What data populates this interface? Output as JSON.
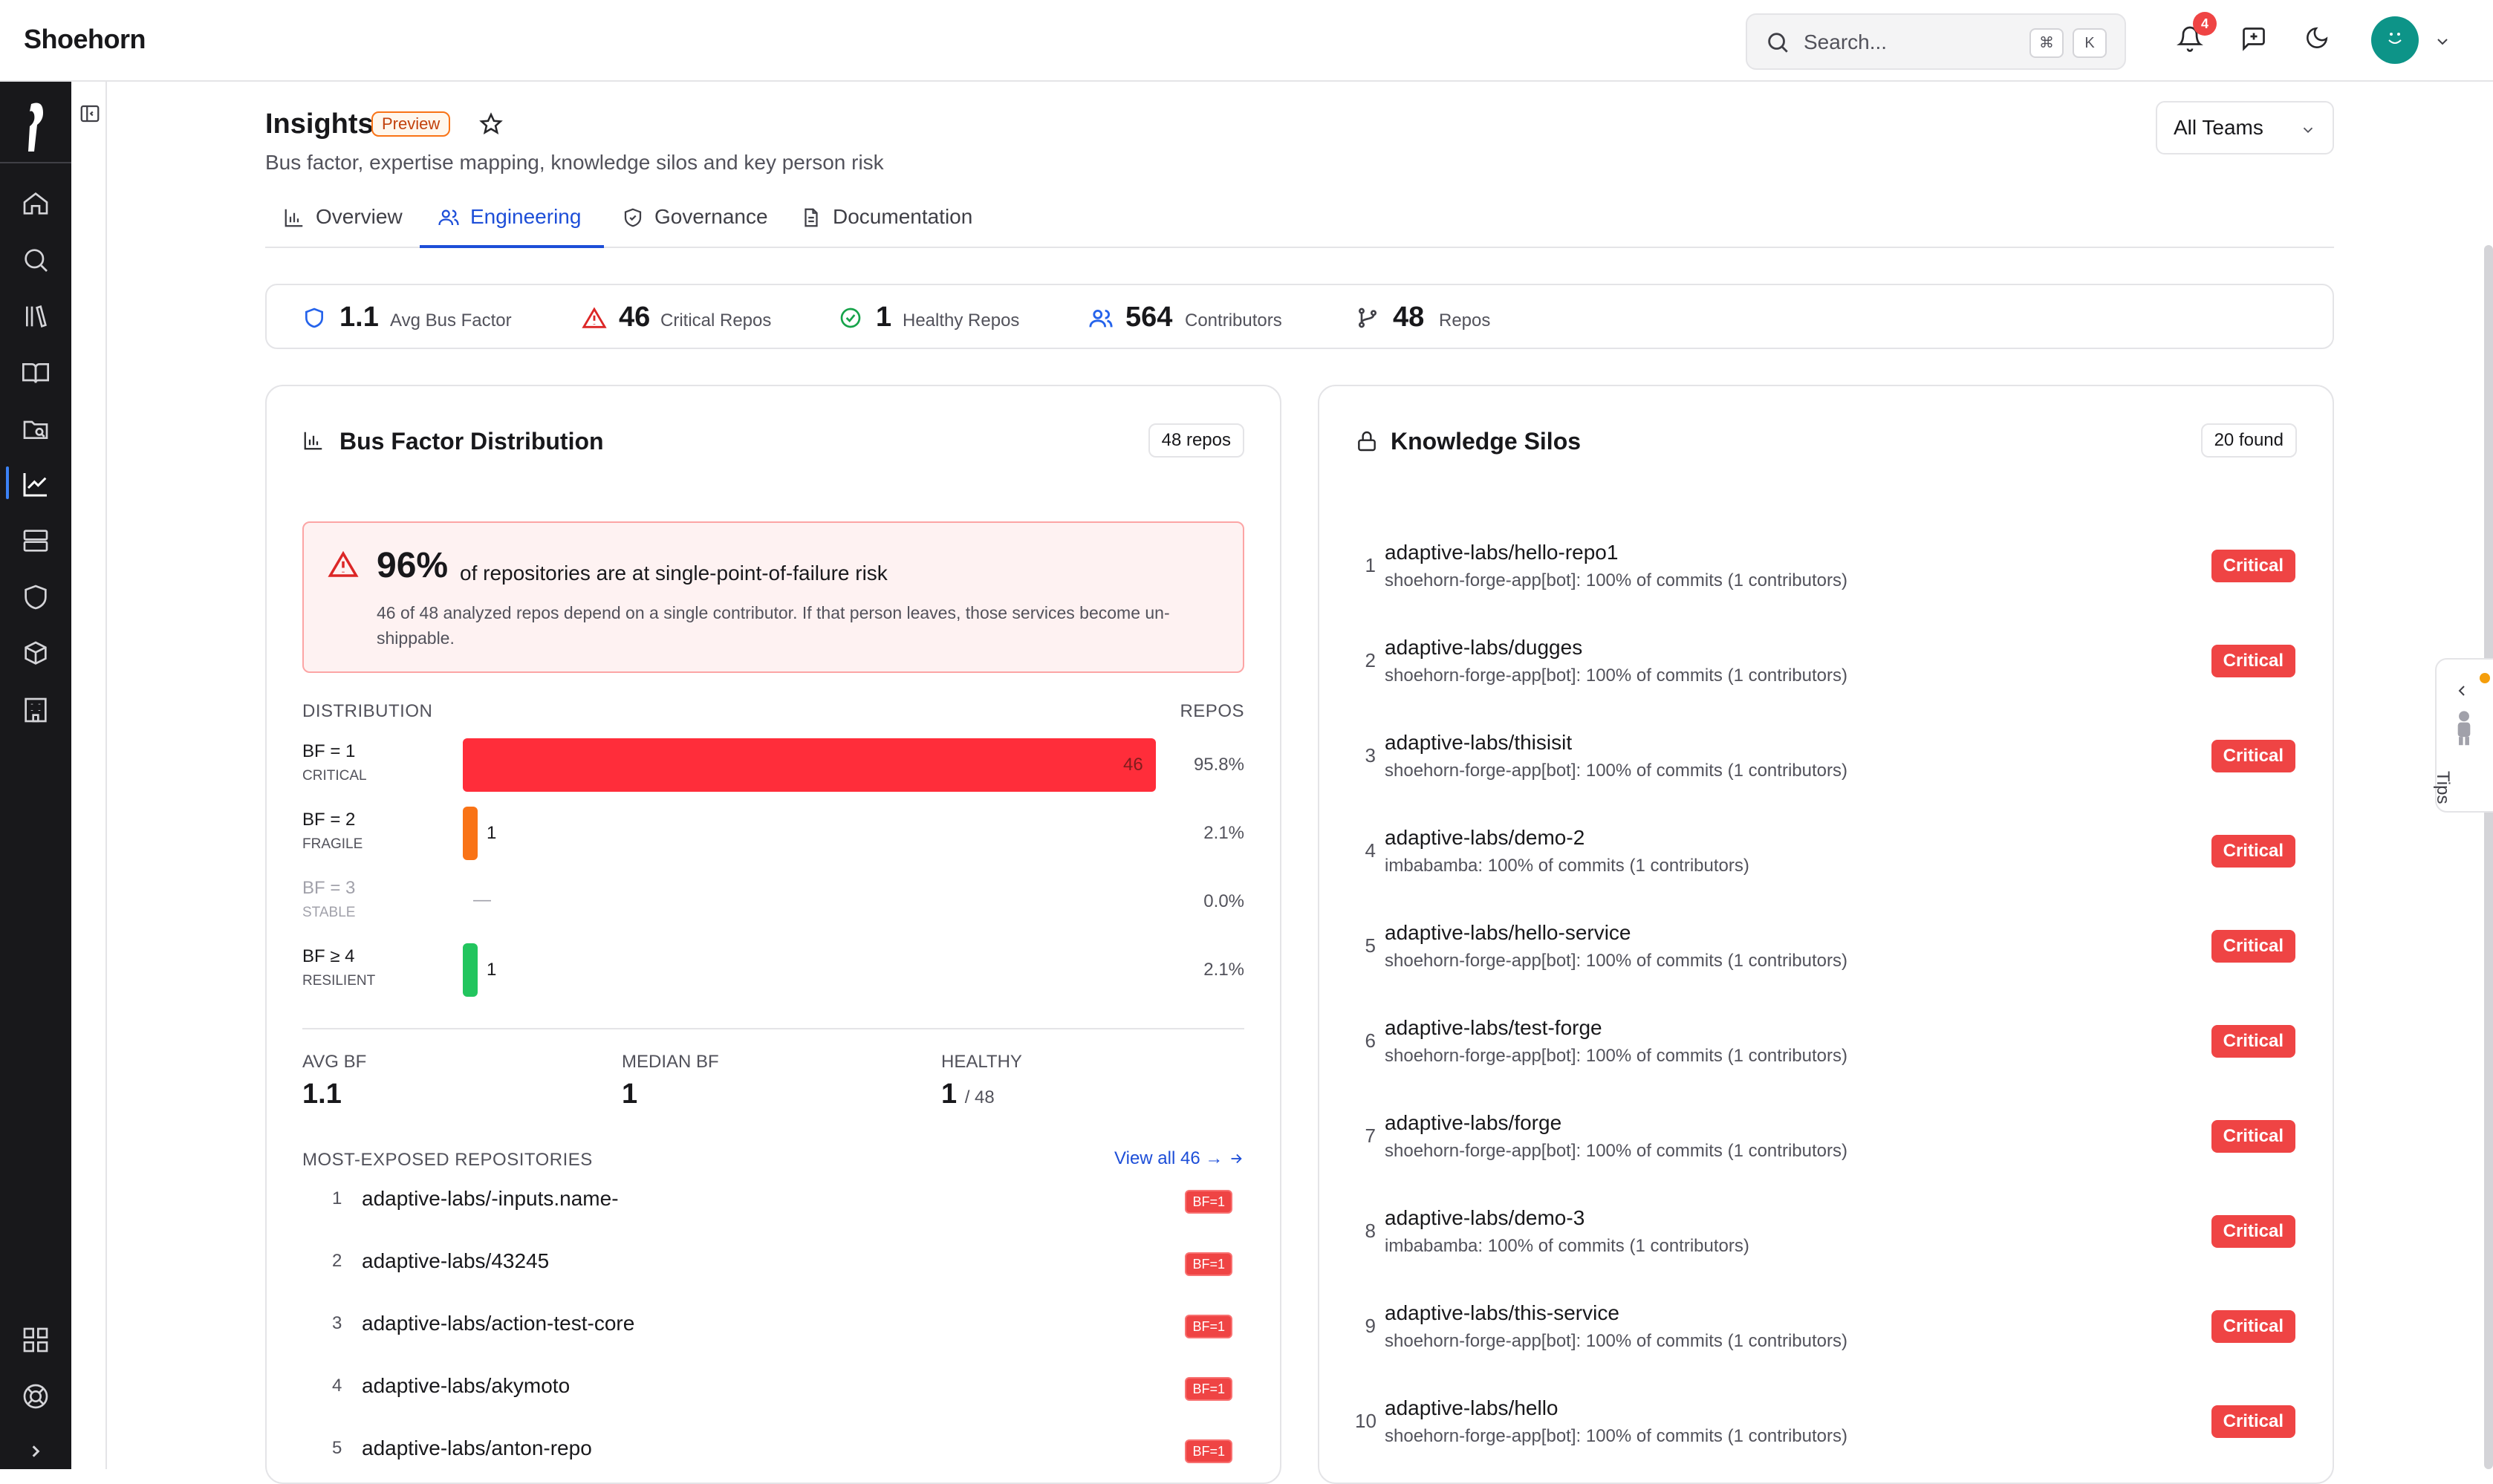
{
  "app": {
    "brand": "Shoehorn"
  },
  "topbar": {
    "search_placeholder": "Search...",
    "kbd_cmd": "⌘",
    "kbd_k": "K",
    "notifications_count": "4"
  },
  "page": {
    "title": "Insights",
    "badge": "Preview",
    "subtitle": "Bus factor, expertise mapping, knowledge silos and key person risk",
    "team_filter": "All Teams",
    "tabs": [
      {
        "label": "Overview",
        "active": false
      },
      {
        "label": "Engineering",
        "active": true
      },
      {
        "label": "Governance",
        "active": false
      },
      {
        "label": "Documentation",
        "active": false
      }
    ]
  },
  "stats": [
    {
      "value": "1.1",
      "label": "Avg Bus Factor",
      "icon": "shield-icon",
      "color": "#2563eb"
    },
    {
      "value": "46",
      "label": "Critical Repos",
      "icon": "alert-triangle-icon",
      "color": "#dc2626"
    },
    {
      "value": "1",
      "label": "Healthy Repos",
      "icon": "check-circle-icon",
      "color": "#16a34a"
    },
    {
      "value": "564",
      "label": "Contributors",
      "icon": "users-icon",
      "color": "#2563eb"
    },
    {
      "value": "48",
      "label": "Repos",
      "icon": "git-branch-icon",
      "color": "#3f3f46"
    }
  ],
  "bus_factor": {
    "title": "Bus Factor Distribution",
    "count_pill": "48 repos",
    "alert": {
      "percent": "96%",
      "text": "of repositories are at single-point-of-failure risk",
      "description": "46 of 48 analyzed repos depend on a single contributor. If that person leaves, those services become un-shippable."
    },
    "distribution_label": "DISTRIBUTION",
    "repos_label": "REPOS",
    "rows": [
      {
        "bf": "BF = 1",
        "tag": "CRITICAL",
        "count": "46",
        "pct": "95.8%",
        "fraction": 0.958,
        "color": "#ff2d3a"
      },
      {
        "bf": "BF = 2",
        "tag": "FRAGILE",
        "count": "1",
        "pct": "2.1%",
        "fraction": 0.021,
        "color": "#f97316"
      },
      {
        "bf": "BF = 3",
        "tag": "STABLE",
        "count": "—",
        "pct": "0.0%",
        "fraction": 0,
        "color": "#d4d4d8"
      },
      {
        "bf": "BF ≥ 4",
        "tag": "RESILIENT",
        "count": "1",
        "pct": "2.1%",
        "fraction": 0.021,
        "color": "#22c55e"
      }
    ],
    "summary": {
      "avg_label": "AVG BF",
      "avg_value": "1.1",
      "median_label": "MEDIAN BF",
      "median_value": "1",
      "healthy_label": "HEALTHY",
      "healthy_value": "1",
      "healthy_total": "/ 48"
    },
    "exposed_label": "MOST-EXPOSED REPOSITORIES",
    "view_all": "View all 46 →",
    "exposed": [
      {
        "n": "1",
        "name": "adaptive-labs/-inputs.name-",
        "badge": "BF=1"
      },
      {
        "n": "2",
        "name": "adaptive-labs/43245",
        "badge": "BF=1"
      },
      {
        "n": "3",
        "name": "adaptive-labs/action-test-core",
        "badge": "BF=1"
      },
      {
        "n": "4",
        "name": "adaptive-labs/akymoto",
        "badge": "BF=1"
      },
      {
        "n": "5",
        "name": "adaptive-labs/anton-repo",
        "badge": "BF=1"
      }
    ]
  },
  "silos": {
    "title": "Knowledge Silos",
    "count_pill": "20 found",
    "items": [
      {
        "n": "1",
        "name": "adaptive-labs/hello-repo1",
        "detail": "shoehorn-forge-app[bot]: 100% of commits (1 contributors)",
        "badge": "Critical"
      },
      {
        "n": "2",
        "name": "adaptive-labs/dugges",
        "detail": "shoehorn-forge-app[bot]: 100% of commits (1 contributors)",
        "badge": "Critical"
      },
      {
        "n": "3",
        "name": "adaptive-labs/thisisit",
        "detail": "shoehorn-forge-app[bot]: 100% of commits (1 contributors)",
        "badge": "Critical"
      },
      {
        "n": "4",
        "name": "adaptive-labs/demo-2",
        "detail": "imbabamba: 100% of commits (1 contributors)",
        "badge": "Critical"
      },
      {
        "n": "5",
        "name": "adaptive-labs/hello-service",
        "detail": "shoehorn-forge-app[bot]: 100% of commits (1 contributors)",
        "badge": "Critical"
      },
      {
        "n": "6",
        "name": "adaptive-labs/test-forge",
        "detail": "shoehorn-forge-app[bot]: 100% of commits (1 contributors)",
        "badge": "Critical"
      },
      {
        "n": "7",
        "name": "adaptive-labs/forge",
        "detail": "shoehorn-forge-app[bot]: 100% of commits (1 contributors)",
        "badge": "Critical"
      },
      {
        "n": "8",
        "name": "adaptive-labs/demo-3",
        "detail": "imbabamba: 100% of commits (1 contributors)",
        "badge": "Critical"
      },
      {
        "n": "9",
        "name": "adaptive-labs/this-service",
        "detail": "shoehorn-forge-app[bot]: 100% of commits (1 contributors)",
        "badge": "Critical"
      },
      {
        "n": "10",
        "name": "adaptive-labs/hello",
        "detail": "shoehorn-forge-app[bot]: 100% of commits (1 contributors)",
        "badge": "Critical"
      }
    ]
  },
  "tips": {
    "label": "Tips"
  }
}
